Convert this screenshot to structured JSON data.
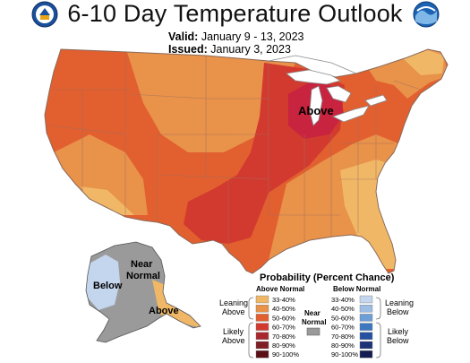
{
  "header": {
    "title": "6-10 Day Temperature Outlook",
    "valid_label": "Valid:",
    "valid_dates": "January 9 - 13, 2023",
    "issued_label": "Issued:",
    "issued_date": "January 3, 2023"
  },
  "logos": {
    "left": "commerce-seal",
    "right_text": "NOAA"
  },
  "map_labels": {
    "conus_above": "Above",
    "alaska_below": "Below",
    "alaska_near_normal_line1": "Near",
    "alaska_near_normal_line2": "Normal",
    "alaska_above": "Above"
  },
  "legend": {
    "title": "Probability (Percent Chance)",
    "above_header": "Above Normal",
    "below_header": "Below Normal",
    "near_normal_line1": "Near",
    "near_normal_line2": "Normal",
    "leaning_above_line1": "Leaning",
    "leaning_above_line2": "Above",
    "likely_above_line1": "Likely",
    "likely_above_line2": "Above",
    "leaning_below_line1": "Leaning",
    "leaning_below_line2": "Below",
    "likely_below_line1": "Likely",
    "likely_below_line2": "Below",
    "above_bins": [
      {
        "label": "33-40%",
        "color": "#f0b866"
      },
      {
        "label": "40-50%",
        "color": "#e8924a"
      },
      {
        "label": "50-60%",
        "color": "#e25f2f"
      },
      {
        "label": "60-70%",
        "color": "#d23a2f"
      },
      {
        "label": "70-80%",
        "color": "#a8282d"
      },
      {
        "label": "80-90%",
        "color": "#7f1f25"
      },
      {
        "label": "90-100%",
        "color": "#5a1016"
      }
    ],
    "below_bins": [
      {
        "label": "33-40%",
        "color": "#c4d5ee"
      },
      {
        "label": "40-50%",
        "color": "#9dbde4"
      },
      {
        "label": "50-60%",
        "color": "#6d9ed6"
      },
      {
        "label": "60-70%",
        "color": "#3c77c0"
      },
      {
        "label": "70-80%",
        "color": "#2452a0"
      },
      {
        "label": "80-90%",
        "color": "#1c3377"
      },
      {
        "label": "90-100%",
        "color": "#141c52"
      }
    ],
    "near_normal_color": "#9a9a9a"
  }
}
